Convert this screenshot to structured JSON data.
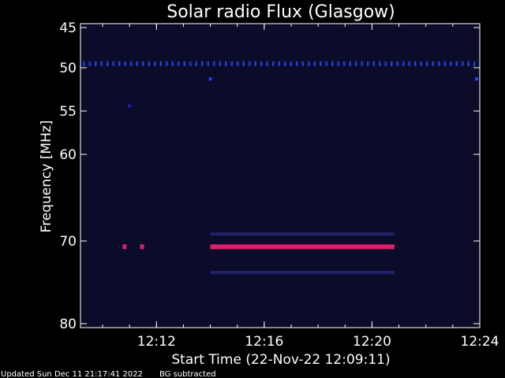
{
  "chart_data": {
    "type": "heatmap",
    "title": "Solar radio Flux (Glasgow)",
    "xlabel": "Start Time (22-Nov-22 12:09:11)",
    "ylabel": "Frequency [MHz]",
    "x_ticks": [
      "12:12",
      "12:16",
      "12:20",
      "12:24"
    ],
    "y_ticks": [
      "45",
      "50",
      "55",
      "60",
      "70",
      "80"
    ],
    "x_range_minutes": [
      9.18,
      24.0
    ],
    "y_range_mhz": [
      45,
      80
    ],
    "y_axis_unit": "MHz",
    "background_color": "#0b0b2a",
    "features": [
      {
        "type": "dotted-band",
        "frequency_mhz": 49.5,
        "start": "12:09",
        "end": "12:24",
        "color": "#1f3fd6"
      },
      {
        "type": "bright-band",
        "frequency_mhz": 70.7,
        "start": "12:14",
        "end": "12:20:50",
        "color": "#e0206a"
      },
      {
        "type": "faint-band",
        "frequency_mhz": 69.2,
        "start": "12:14",
        "end": "12:20:50",
        "color": "#22226a"
      },
      {
        "type": "faint-band",
        "frequency_mhz": 73.8,
        "start": "12:14",
        "end": "12:20:50",
        "color": "#22226a"
      },
      {
        "type": "bright-spot",
        "frequency_mhz": 70.7,
        "time": "12:10:48",
        "color": "#e0206a"
      },
      {
        "type": "bright-spot",
        "frequency_mhz": 70.7,
        "time": "12:11:27",
        "color": "#e0206a"
      },
      {
        "type": "dot",
        "frequency_mhz": 51.3,
        "time": "12:14",
        "color": "#2a3cff"
      },
      {
        "type": "dot",
        "frequency_mhz": 51.3,
        "time": "12:24",
        "color": "#2a3cff"
      },
      {
        "type": "dot",
        "frequency_mhz": 54.4,
        "time": "12:11",
        "color": "#1b1bbb"
      }
    ]
  },
  "footer": {
    "updated": "Updated Sun Dec 11 21:17:41 2022",
    "note": "BG subtracted"
  }
}
